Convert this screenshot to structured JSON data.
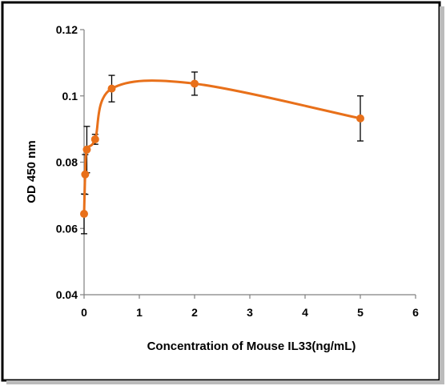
{
  "chart_data": {
    "type": "line",
    "xlabel": "Concentration of Mouse IL33(ng/mL)",
    "ylabel": "OD 450 nm",
    "xlim": [
      0,
      6
    ],
    "ylim": [
      0.04,
      0.12
    ],
    "xticks": [
      0,
      1,
      2,
      3,
      4,
      5,
      6
    ],
    "yticks": [
      0.04,
      0.06,
      0.08,
      0.1,
      0.12
    ],
    "ytick_labels": [
      "0.04",
      "0.06",
      "0.08",
      "0.1",
      "0.12"
    ],
    "grid": false,
    "legend": false,
    "series": [
      {
        "color": "#E8701A",
        "marker": "circle",
        "smooth": true,
        "points": [
          {
            "x": 0,
            "y": 0.0644,
            "err": 0.006
          },
          {
            "x": 0.02,
            "y": 0.0763,
            "err": 0.006
          },
          {
            "x": 0.05,
            "y": 0.0838,
            "err": 0.007
          },
          {
            "x": 0.2,
            "y": 0.0869,
            "err": 0.0015
          },
          {
            "x": 0.5,
            "y": 0.1022,
            "err": 0.004
          },
          {
            "x": 2,
            "y": 0.1037,
            "err": 0.0035
          },
          {
            "x": 5,
            "y": 0.0932,
            "err": 0.0068
          }
        ]
      }
    ]
  }
}
